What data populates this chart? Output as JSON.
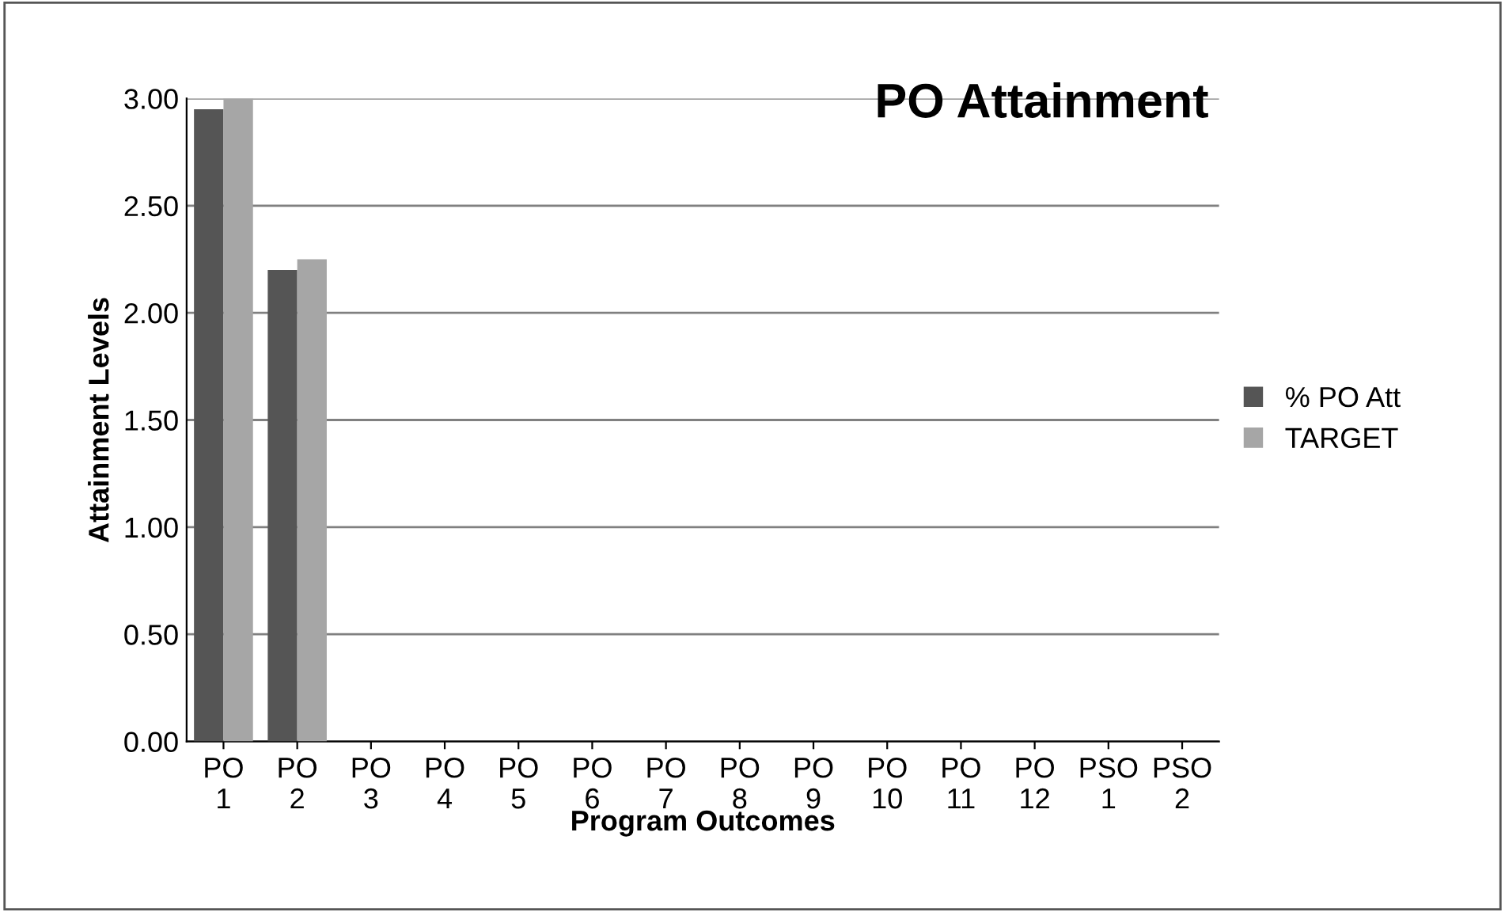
{
  "chart_data": {
    "type": "bar",
    "title": "PO Attainment",
    "xlabel": "Program Outcomes",
    "ylabel": "Attainment Levels",
    "categories": [
      "PO\n1",
      "PO\n2",
      "PO\n3",
      "PO\n4",
      "PO\n5",
      "PO\n6",
      "PO\n7",
      "PO\n8",
      "PO\n9",
      "PO\n10",
      "PO\n11",
      "PO\n12",
      "PSO\n1",
      "PSO\n2"
    ],
    "series": [
      {
        "name": "% PO Att",
        "color": "#555555",
        "values": [
          2.95,
          2.2,
          null,
          null,
          null,
          null,
          null,
          null,
          null,
          null,
          null,
          null,
          null,
          null
        ]
      },
      {
        "name": "TARGET",
        "color": "#a6a6a6",
        "values": [
          3.0,
          2.25,
          null,
          null,
          null,
          null,
          null,
          null,
          null,
          null,
          null,
          null,
          null,
          null
        ]
      }
    ],
    "ylim": [
      0,
      3
    ],
    "yticks": [
      {
        "value": 0,
        "label": "0.00"
      },
      {
        "value": 0.5,
        "label": "0.50"
      },
      {
        "value": 1,
        "label": "1.00"
      },
      {
        "value": 1.5,
        "label": "1.50"
      },
      {
        "value": 2,
        "label": "2.00"
      },
      {
        "value": 2.5,
        "label": "2.50"
      },
      {
        "value": 3,
        "label": "3.00"
      }
    ],
    "grid": "y",
    "legend": "right"
  }
}
